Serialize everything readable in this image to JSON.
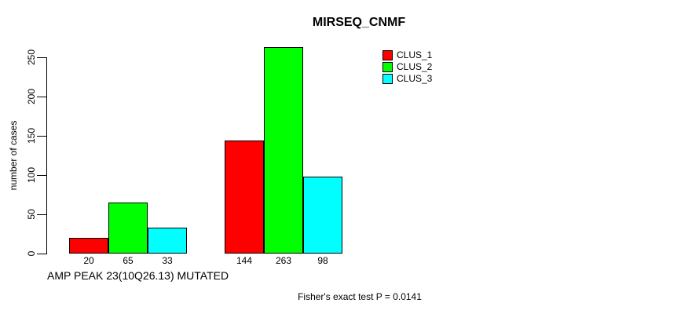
{
  "chart_data": {
    "type": "bar",
    "title": "MIRSEQ_CNMF",
    "xlabel": "AMP PEAK 23(10Q26.13) MUTATED",
    "ylabel": "number of cases",
    "ylim": [
      0,
      250
    ],
    "yticks": [
      0,
      50,
      100,
      150,
      200,
      250
    ],
    "grid": false,
    "legend_position": "top-right",
    "categories": [
      "",
      ""
    ],
    "series": [
      {
        "name": "CLUS_1",
        "color": "#ff0000",
        "values": [
          20,
          144
        ]
      },
      {
        "name": "CLUS_2",
        "color": "#00ff00",
        "values": [
          65,
          263
        ]
      },
      {
        "name": "CLUS_3",
        "color": "#00ffff",
        "values": [
          33,
          98
        ]
      }
    ],
    "bar_value_labels": [
      [
        "20",
        "65",
        "33"
      ],
      [
        "144",
        "263",
        "98"
      ]
    ],
    "annotation": "Fisher's exact test P = 0.0141"
  },
  "legend": {
    "items": [
      {
        "label": "CLUS_1",
        "color": "#ff0000"
      },
      {
        "label": "CLUS_2",
        "color": "#00ff00"
      },
      {
        "label": "CLUS_3",
        "color": "#00ffff"
      }
    ]
  },
  "colors": {
    "axis": "#000000",
    "background": "#ffffff",
    "text": "#000000"
  }
}
